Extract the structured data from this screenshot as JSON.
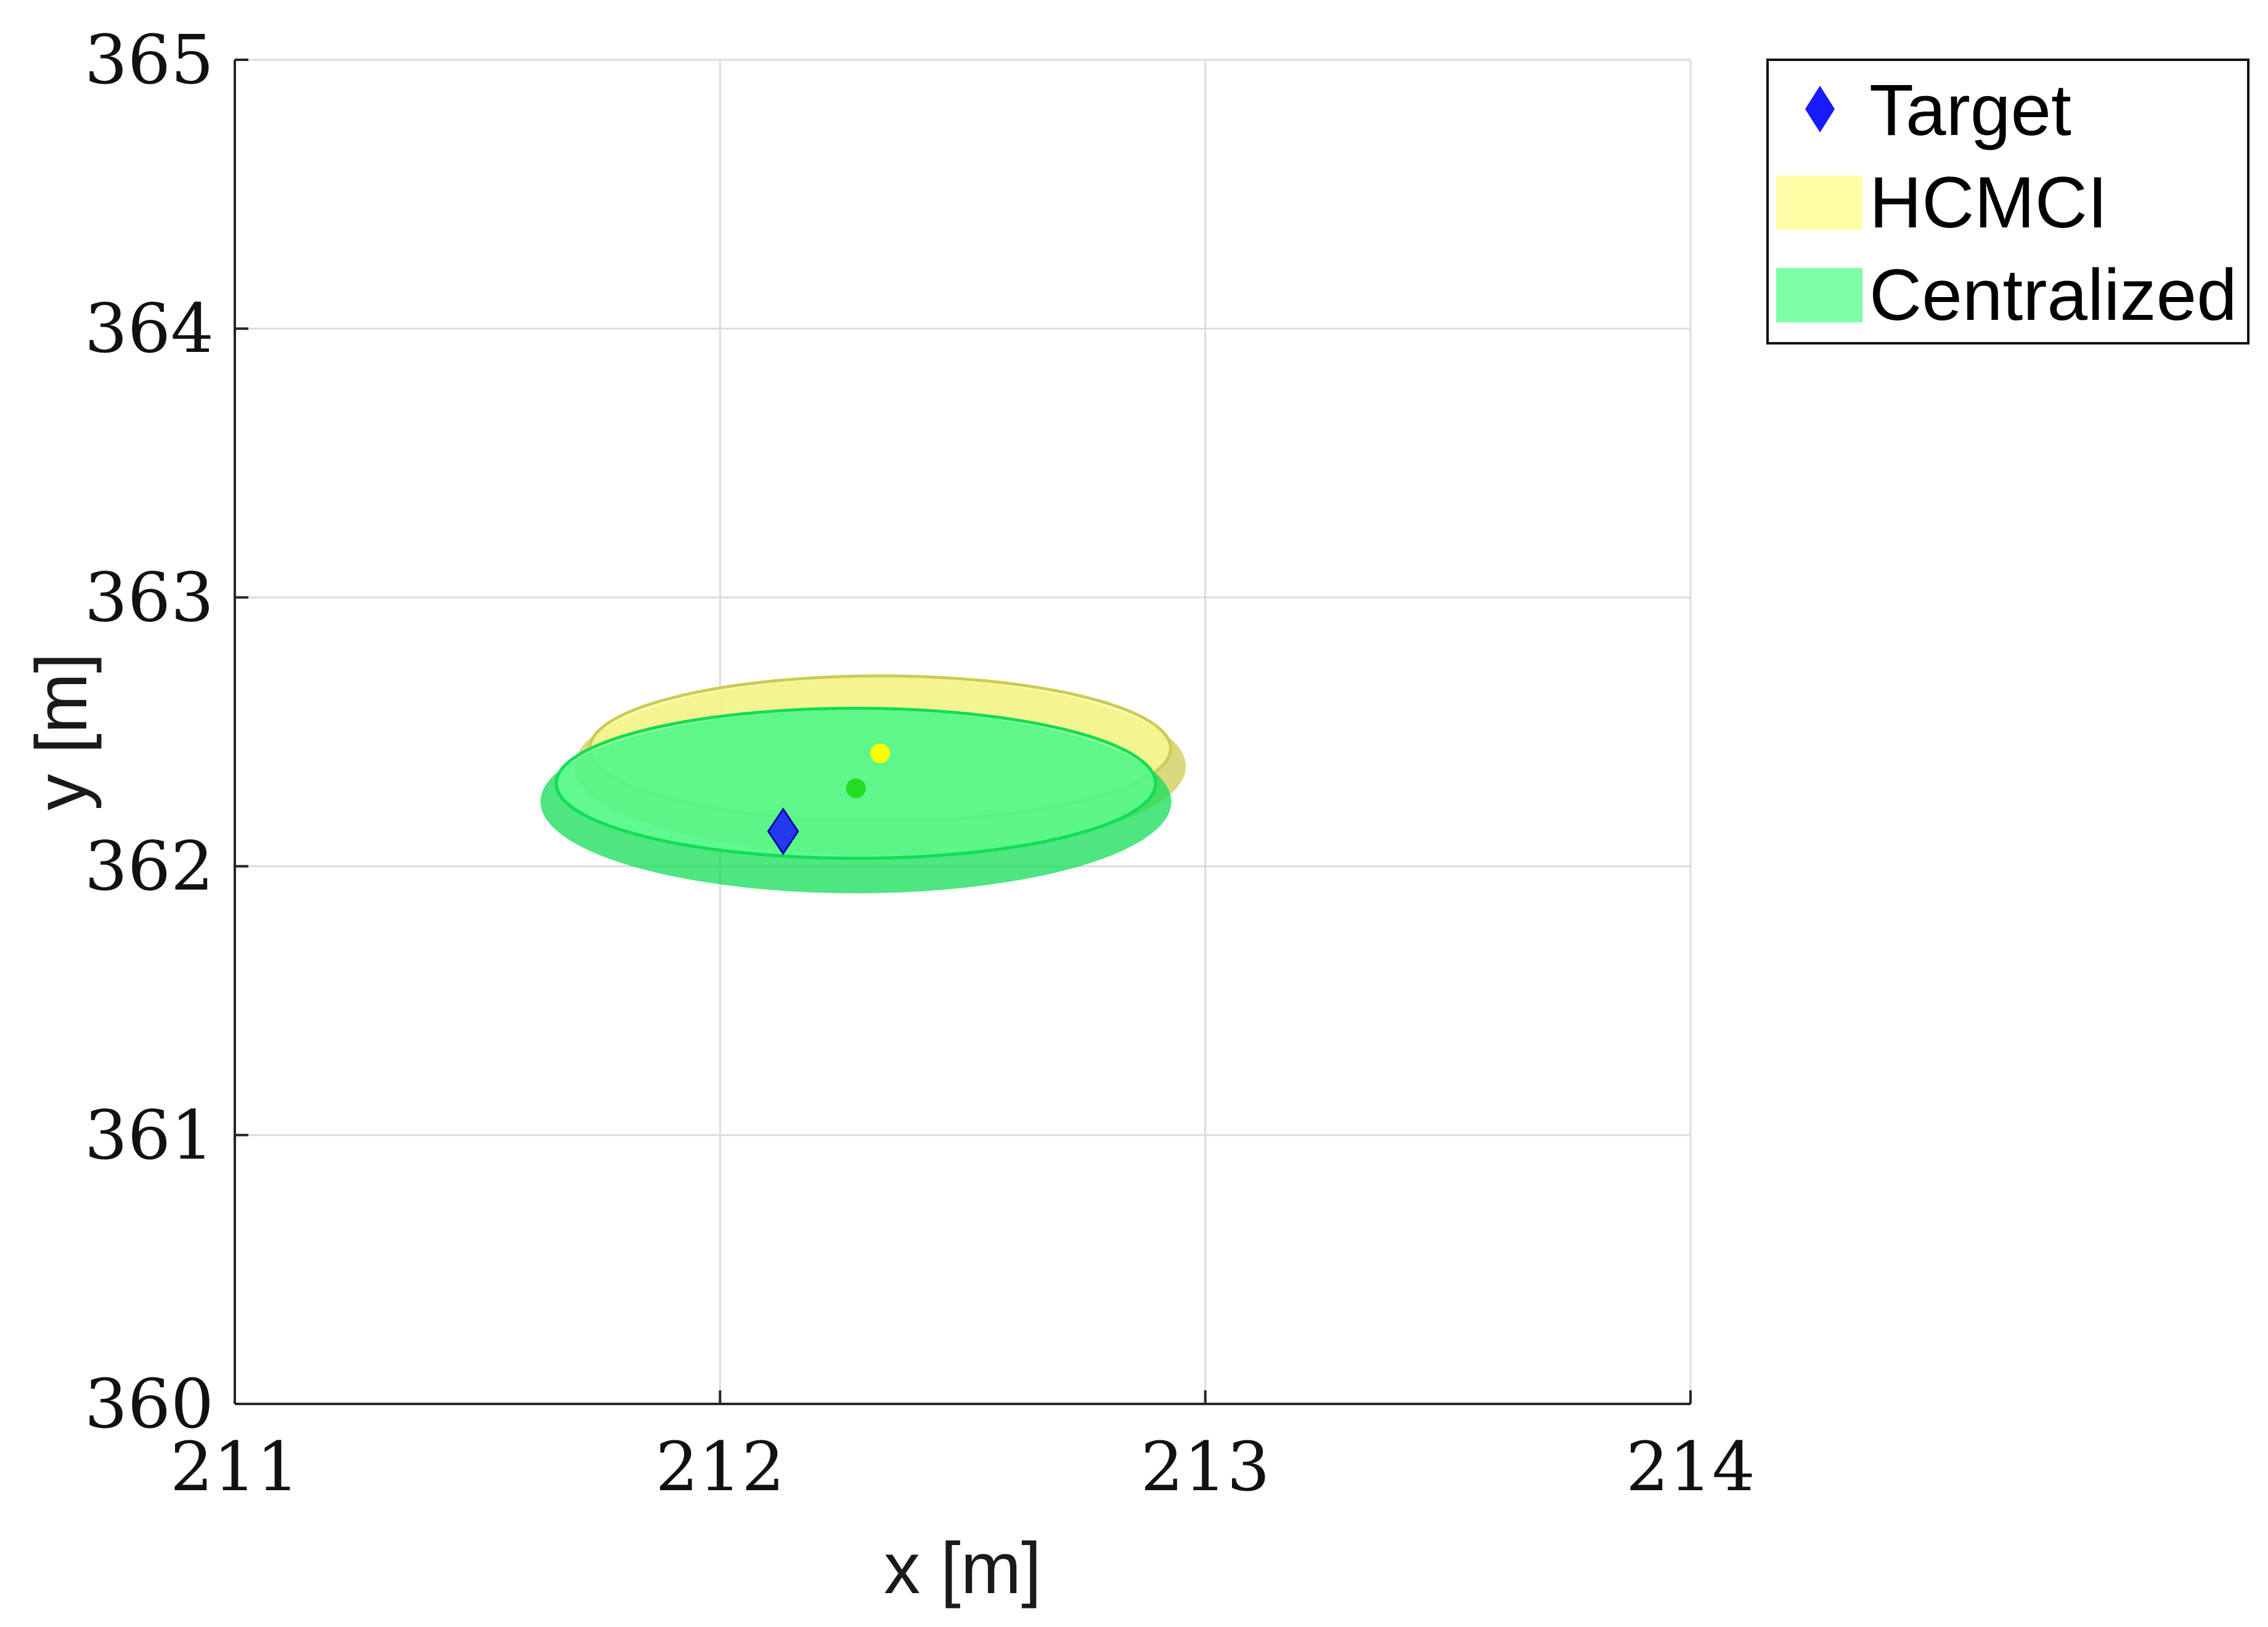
{
  "chart_data": {
    "type": "scatter",
    "title": "",
    "xlabel": "x [m]",
    "ylabel": "y [m]",
    "xlim": [
      211,
      214
    ],
    "ylim": [
      360,
      365
    ],
    "xticks": [
      211,
      212,
      213,
      214
    ],
    "yticks": [
      360,
      361,
      362,
      363,
      364,
      365
    ],
    "grid": true,
    "legend_position": "outside top-right",
    "series": [
      {
        "name": "Target",
        "kind": "marker",
        "marker": "diamond",
        "color": "#1a1aff",
        "points": [
          {
            "x": 212.13,
            "y": 362.13
          }
        ]
      },
      {
        "name": "HCMCI",
        "kind": "ellipse",
        "color": "#ffff99",
        "edge_color": "#cccc55",
        "center": {
          "x": 212.33,
          "y": 362.42
        },
        "semi_axis_x": 0.63,
        "semi_axis_y": 0.6
      },
      {
        "name": "Centralized",
        "kind": "ellipse",
        "color": "#66ff99",
        "edge_color": "#11dd55",
        "center": {
          "x": 212.28,
          "y": 362.29
        },
        "semi_axis_x": 0.65,
        "semi_axis_y": 0.62
      }
    ],
    "estimates": [
      {
        "x": 212.33,
        "y": 362.42,
        "color": "#ffff00"
      },
      {
        "x": 212.28,
        "y": 362.29,
        "color": "#22dd22"
      }
    ]
  }
}
